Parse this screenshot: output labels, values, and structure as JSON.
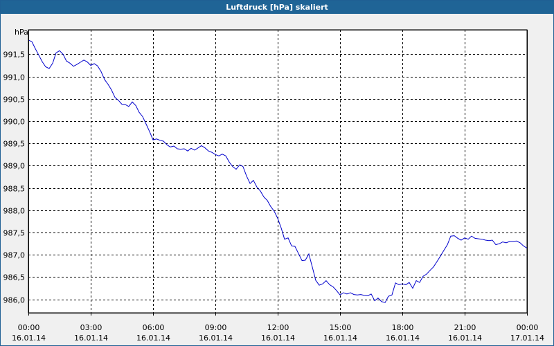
{
  "window": {
    "title": "Luftdruck [hPa] skaliert"
  },
  "colors": {
    "titlebar": "#1f6496",
    "background": "#f0f0f0",
    "plot_background": "#ffffff",
    "line": "#0000cc",
    "grid": "#000000"
  },
  "chart_data": {
    "type": "line",
    "title": "Luftdruck [hPa] skaliert",
    "ylabel": "hPa",
    "xlabel": "",
    "grid": true,
    "ylim": [
      985.7,
      992.05
    ],
    "xlim": [
      0,
      24
    ],
    "y_ticks": [
      "991,5",
      "991,0",
      "990,5",
      "990,0",
      "989,5",
      "989,0",
      "988,5",
      "988,0",
      "987,5",
      "987,0",
      "986,5",
      "986,0"
    ],
    "y_tick_values": [
      991.5,
      991.0,
      990.5,
      990.0,
      989.5,
      989.0,
      988.5,
      988.0,
      987.5,
      987.0,
      986.5,
      986.0
    ],
    "x_ticks": [
      {
        "time": "00:00",
        "date": "16.01.14"
      },
      {
        "time": "03:00",
        "date": "16.01.14"
      },
      {
        "time": "06:00",
        "date": "16.01.14"
      },
      {
        "time": "09:00",
        "date": "16.01.14"
      },
      {
        "time": "12:00",
        "date": "16.01.14"
      },
      {
        "time": "15:00",
        "date": "16.01.14"
      },
      {
        "time": "18:00",
        "date": "16.01.14"
      },
      {
        "time": "21:00",
        "date": "16.01.14"
      },
      {
        "time": "00:00",
        "date": "17.01.14"
      }
    ],
    "x_tick_hours": [
      0,
      3,
      6,
      9,
      12,
      15,
      18,
      21,
      24
    ],
    "series": [
      {
        "values": [
          [
            0.0,
            991.82
          ],
          [
            0.17,
            991.78
          ],
          [
            0.33,
            991.63
          ],
          [
            0.5,
            991.48
          ],
          [
            0.67,
            991.33
          ],
          [
            0.83,
            991.22
          ],
          [
            1.0,
            991.18
          ],
          [
            1.17,
            991.3
          ],
          [
            1.33,
            991.53
          ],
          [
            1.5,
            991.58
          ],
          [
            1.67,
            991.5
          ],
          [
            1.83,
            991.35
          ],
          [
            2.0,
            991.3
          ],
          [
            2.17,
            991.23
          ],
          [
            2.33,
            991.27
          ],
          [
            2.5,
            991.32
          ],
          [
            2.67,
            991.37
          ],
          [
            2.83,
            991.33
          ],
          [
            3.0,
            991.25
          ],
          [
            3.17,
            991.29
          ],
          [
            3.33,
            991.24
          ],
          [
            3.5,
            991.11
          ],
          [
            3.67,
            990.93
          ],
          [
            3.83,
            990.83
          ],
          [
            4.0,
            990.7
          ],
          [
            4.17,
            990.53
          ],
          [
            4.33,
            990.47
          ],
          [
            4.5,
            990.38
          ],
          [
            4.67,
            990.37
          ],
          [
            4.83,
            990.33
          ],
          [
            5.0,
            990.43
          ],
          [
            5.17,
            990.35
          ],
          [
            5.33,
            990.2
          ],
          [
            5.5,
            990.1
          ],
          [
            5.67,
            989.93
          ],
          [
            5.83,
            989.77
          ],
          [
            6.0,
            989.58
          ],
          [
            6.17,
            989.6
          ],
          [
            6.33,
            989.57
          ],
          [
            6.5,
            989.55
          ],
          [
            6.67,
            989.47
          ],
          [
            6.83,
            989.42
          ],
          [
            7.0,
            989.44
          ],
          [
            7.17,
            989.38
          ],
          [
            7.33,
            989.37
          ],
          [
            7.5,
            989.38
          ],
          [
            7.67,
            989.33
          ],
          [
            7.83,
            989.39
          ],
          [
            8.0,
            989.35
          ],
          [
            8.17,
            989.4
          ],
          [
            8.33,
            989.45
          ],
          [
            8.5,
            989.4
          ],
          [
            8.67,
            989.33
          ],
          [
            8.83,
            989.3
          ],
          [
            9.0,
            989.25
          ],
          [
            9.17,
            989.22
          ],
          [
            9.33,
            989.26
          ],
          [
            9.5,
            989.22
          ],
          [
            9.67,
            989.08
          ],
          [
            9.83,
            988.98
          ],
          [
            10.0,
            988.92
          ],
          [
            10.17,
            989.02
          ],
          [
            10.33,
            988.98
          ],
          [
            10.5,
            988.77
          ],
          [
            10.67,
            988.6
          ],
          [
            10.83,
            988.67
          ],
          [
            11.0,
            988.52
          ],
          [
            11.17,
            988.43
          ],
          [
            11.33,
            988.3
          ],
          [
            11.5,
            988.22
          ],
          [
            11.67,
            988.08
          ],
          [
            11.83,
            987.98
          ],
          [
            12.0,
            987.82
          ],
          [
            12.17,
            987.6
          ],
          [
            12.33,
            987.35
          ],
          [
            12.5,
            987.38
          ],
          [
            12.67,
            987.2
          ],
          [
            12.83,
            987.19
          ],
          [
            13.0,
            987.03
          ],
          [
            13.17,
            986.87
          ],
          [
            13.33,
            986.88
          ],
          [
            13.5,
            987.02
          ],
          [
            13.67,
            986.72
          ],
          [
            13.83,
            986.43
          ],
          [
            14.0,
            986.32
          ],
          [
            14.17,
            986.35
          ],
          [
            14.33,
            986.42
          ],
          [
            14.5,
            986.33
          ],
          [
            14.67,
            986.28
          ],
          [
            14.83,
            986.2
          ],
          [
            15.0,
            986.1
          ],
          [
            15.17,
            986.15
          ],
          [
            15.33,
            986.12
          ],
          [
            15.5,
            986.15
          ],
          [
            15.67,
            986.11
          ],
          [
            15.83,
            986.1
          ],
          [
            16.0,
            986.11
          ],
          [
            16.17,
            986.09
          ],
          [
            16.33,
            986.08
          ],
          [
            16.5,
            986.12
          ],
          [
            16.67,
            985.97
          ],
          [
            16.83,
            986.03
          ],
          [
            17.0,
            985.95
          ],
          [
            17.17,
            985.93
          ],
          [
            17.33,
            986.07
          ],
          [
            17.5,
            986.1
          ],
          [
            17.67,
            986.37
          ],
          [
            17.83,
            986.33
          ],
          [
            18.0,
            986.35
          ],
          [
            18.17,
            986.33
          ],
          [
            18.33,
            986.38
          ],
          [
            18.5,
            986.25
          ],
          [
            18.67,
            986.42
          ],
          [
            18.83,
            986.38
          ],
          [
            19.0,
            986.52
          ],
          [
            19.17,
            986.57
          ],
          [
            19.33,
            986.65
          ],
          [
            19.5,
            986.73
          ],
          [
            19.67,
            986.85
          ],
          [
            19.83,
            986.97
          ],
          [
            20.0,
            987.1
          ],
          [
            20.17,
            987.23
          ],
          [
            20.33,
            987.42
          ],
          [
            20.5,
            987.43
          ],
          [
            20.67,
            987.37
          ],
          [
            20.83,
            987.33
          ],
          [
            21.0,
            987.38
          ],
          [
            21.17,
            987.35
          ],
          [
            21.33,
            987.42
          ],
          [
            21.5,
            987.37
          ],
          [
            21.67,
            987.36
          ],
          [
            21.83,
            987.35
          ],
          [
            22.0,
            987.33
          ],
          [
            22.17,
            987.32
          ],
          [
            22.33,
            987.33
          ],
          [
            22.5,
            987.23
          ],
          [
            22.67,
            987.25
          ],
          [
            22.83,
            987.29
          ],
          [
            23.0,
            987.27
          ],
          [
            23.17,
            987.3
          ],
          [
            23.33,
            987.3
          ],
          [
            23.5,
            987.31
          ],
          [
            23.67,
            987.27
          ],
          [
            23.83,
            987.2
          ],
          [
            24.0,
            987.15
          ]
        ]
      }
    ]
  }
}
